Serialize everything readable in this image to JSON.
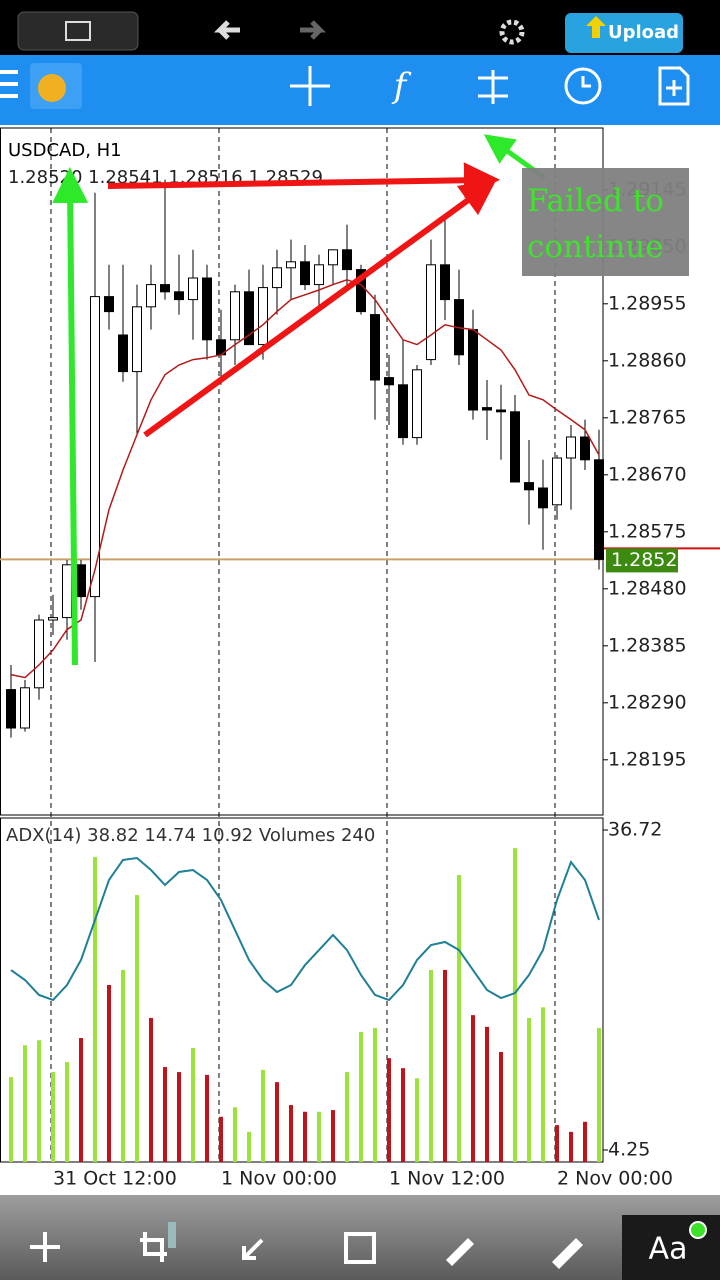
{
  "ui": {
    "upload": "Upload",
    "text_tool": "Aa"
  },
  "chart_data": {
    "type": "candlestick",
    "title": "USDCAD, H1",
    "subtitle": "1.28520 1.28541 1.28516 1.28529",
    "x": [
      null,
      null,
      null,
      "31 Oct 12:00",
      null,
      null,
      null,
      null,
      null,
      null,
      null,
      null,
      null,
      null,
      null,
      "1 Nov 00:00",
      null,
      null,
      null,
      null,
      null,
      null,
      null,
      null,
      null,
      null,
      null,
      "1 Nov 12:00",
      null,
      null,
      null,
      null,
      null,
      null,
      null,
      null,
      null,
      null,
      null,
      "2 Nov 00:00",
      null,
      null,
      null
    ],
    "open": [
      1.28312,
      1.28248,
      1.28315,
      1.28428,
      1.28432,
      1.2852,
      1.28467,
      1.28967,
      1.28903,
      1.28842,
      1.2895,
      1.28987,
      1.28975,
      1.28962,
      1.28998,
      1.28895,
      1.28895,
      1.28975,
      1.28887,
      1.28982,
      1.29015,
      1.29025,
      1.28987,
      1.2902,
      1.29045,
      1.29012,
      1.28937,
      1.28832,
      1.2882,
      1.28732,
      1.28862,
      1.2902,
      1.28962,
      1.28912,
      1.28782,
      1.28778,
      1.28775,
      1.28657,
      1.28648,
      1.2862,
      1.28698,
      1.28733,
      1.28695
    ],
    "high": [
      1.28353,
      1.28328,
      1.28437,
      1.2847,
      1.28528,
      1.28528,
      1.2914,
      1.2902,
      1.2902,
      1.28987,
      1.2902,
      1.29162,
      1.29037,
      1.29045,
      1.2902,
      1.28945,
      1.28987,
      1.29012,
      1.2902,
      1.29045,
      1.29062,
      1.29053,
      1.29037,
      1.29045,
      1.29087,
      1.2902,
      1.2897,
      1.2887,
      1.28895,
      1.28853,
      1.29062,
      1.29095,
      1.29012,
      1.28945,
      1.28828,
      1.2882,
      1.28803,
      1.28728,
      1.28695,
      1.28703,
      1.28753,
      1.28762,
      1.28745
    ],
    "low": [
      1.28232,
      1.28242,
      1.28295,
      1.28403,
      1.28395,
      1.28445,
      1.28358,
      1.28912,
      1.28825,
      1.28737,
      1.28912,
      1.28962,
      1.28937,
      1.28895,
      1.28862,
      1.2882,
      1.28853,
      1.28887,
      1.28862,
      1.28937,
      1.28962,
      1.28978,
      1.28945,
      1.28987,
      1.28987,
      1.28937,
      1.28762,
      1.28753,
      1.2872,
      1.2872,
      1.28853,
      1.28928,
      1.28853,
      1.28762,
      1.28728,
      1.28695,
      1.28662,
      1.28587,
      1.28545,
      1.28595,
      1.28612,
      1.28678,
      1.28512
    ],
    "close": [
      1.28248,
      1.28315,
      1.28428,
      1.28432,
      1.2852,
      1.28467,
      1.28967,
      1.28942,
      1.28842,
      1.2895,
      1.28987,
      1.28975,
      1.28962,
      1.28998,
      1.28895,
      1.2887,
      1.28975,
      1.28887,
      1.28982,
      1.29015,
      1.29025,
      1.28987,
      1.2902,
      1.29045,
      1.29012,
      1.28942,
      1.28828,
      1.2882,
      1.28732,
      1.28845,
      1.2902,
      1.28962,
      1.2887,
      1.28778,
      1.28778,
      1.28775,
      1.28658,
      1.28645,
      1.28615,
      1.28698,
      1.28733,
      1.28695,
      1.28529
    ],
    "ylim": [
      1.28103,
      1.29248
    ],
    "yticks": [
      1.29145,
      {
        "value": 1.2905,
        "label": "1.29050"
      },
      1.28955,
      {
        "value": 1.2886,
        "label": "1.28860"
      },
      1.28765,
      {
        "value": 1.2867,
        "label": "1.28670"
      },
      1.28575,
      {
        "value": 1.2848,
        "label": "1.28480"
      },
      1.28385,
      {
        "value": 1.2829,
        "label": "1.28290"
      },
      1.28195
    ],
    "current_price": 1.28529,
    "ma": {
      "color": "#b51a1a",
      "values": [
        1.28337,
        1.28332,
        1.28353,
        1.28378,
        1.28412,
        1.28428,
        1.28512,
        1.28612,
        1.28678,
        1.28737,
        1.28795,
        1.28837,
        1.28853,
        1.28862,
        1.28865,
        1.2887,
        1.28887,
        1.28903,
        1.2892,
        1.28942,
        1.28962,
        1.2897,
        1.28978,
        1.28987,
        1.28995,
        1.28987,
        1.28962,
        1.28928,
        1.28895,
        1.28887,
        1.28903,
        1.2892,
        1.28915,
        1.28912,
        1.28895,
        1.28878,
        1.28845,
        1.28803,
        1.28795,
        1.28778,
        1.28762,
        1.28745,
        1.28703
      ]
    },
    "annotation": "Failed to continue",
    "indicator": {
      "title": "ADX(14) 38.82 14.74 10.92 Volumes 240",
      "ylim": [
        3.03,
        37.94
      ],
      "yticks": [
        4.25,
        36.72
      ],
      "series": [
        {
          "color": "#1f7f96",
          "values": [
            22.51,
            21.5,
            19.98,
            19.47,
            20.99,
            23.53,
            27.59,
            31.65,
            33.68,
            33.88,
            32.66,
            31.14,
            32.46,
            32.66,
            31.65,
            29.62,
            26.57,
            23.53,
            21.5,
            20.28,
            20.99,
            23.02,
            24.54,
            26.07,
            24.54,
            22.01,
            19.98,
            19.47,
            20.99,
            23.53,
            25.05,
            25.36,
            24.54,
            22.51,
            20.49,
            19.67,
            20.18,
            22.01,
            24.54,
            29.62,
            33.47,
            31.65,
            27.59
          ]
        }
      ],
      "volumes": {
        "lim": [
          0,
          616
        ],
        "values": [
          152,
          209,
          218,
          161,
          179,
          222,
          546,
          317,
          344,
          478,
          258,
          170,
          161,
          204,
          156,
          81,
          98,
          54,
          165,
          143,
          102,
          90,
          90,
          93,
          161,
          233,
          240,
          186,
          168,
          150,
          344,
          344,
          514,
          263,
          242,
          197,
          562,
          258,
          277,
          66,
          54,
          72,
          240
        ],
        "colors": [
          "#9be23a",
          "#9be23a",
          "#9be23a",
          "#9be23a",
          "#9be23a",
          "#c0141c",
          "#9be23a",
          "#c0141c",
          "#9be23a",
          "#9be23a",
          "#c0141c",
          "#c0141c",
          "#c0141c",
          "#9be23a",
          "#c0141c",
          "#c0141c",
          "#9be23a",
          "#9be23a",
          "#9be23a",
          "#c0141c",
          "#c0141c",
          "#c0141c",
          "#9be23a",
          "#c0141c",
          "#9be23a",
          "#9be23a",
          "#9be23a",
          "#c0141c",
          "#c0141c",
          "#9be23a",
          "#9be23a",
          "#c0141c",
          "#9be23a",
          "#c0141c",
          "#c0141c",
          "#c0141c",
          "#9be23a",
          "#9be23a",
          "#9be23a",
          "#c0141c",
          "#c0141c",
          "#c0141c",
          "#9be23a"
        ]
      }
    }
  }
}
